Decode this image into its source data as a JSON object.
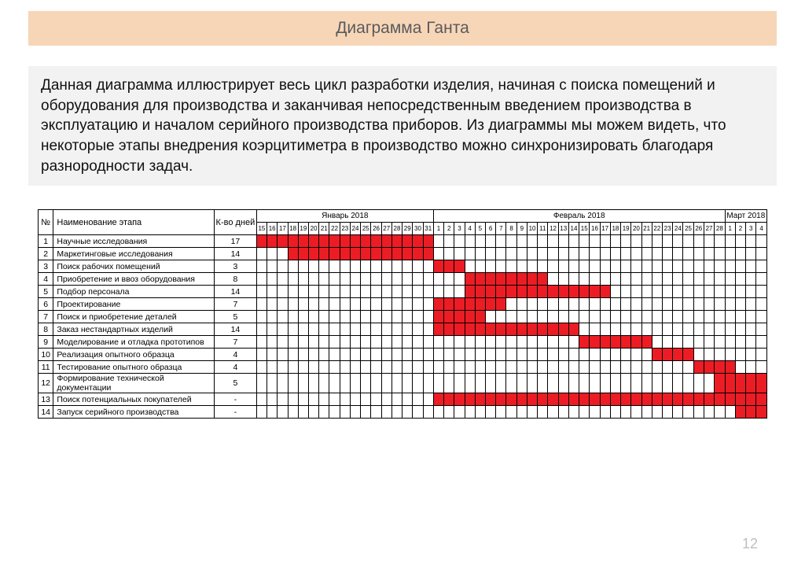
{
  "title": "Диаграмма Ганта",
  "description": "Данная диаграмма иллюстрирует весь цикл разработки изделия, начиная с поиска помещений и оборудования для производства и заканчивая непосредственным введением производства в эксплуатацию и началом серийного производства приборов. Из диаграммы мы можем видеть, что некоторые этапы внедрения коэрцитиметра в производство можно синхронизировать  благодаря разнородности задач.",
  "page_number": "12",
  "gantt": {
    "type": "gantt",
    "bar_color": "#ec1c24",
    "grid_color": "#000000",
    "background_color": "#ffffff",
    "title_band_color": "#f7d6b8",
    "desc_bg_color": "#f2f2f2",
    "title_fontsize_pt": 16,
    "desc_fontsize_pt": 14,
    "table_fontsize_pt": 8,
    "headers": {
      "num": "№",
      "name": "Наименование этапа",
      "days": "К-во дней"
    },
    "months": [
      {
        "label": "Январь 2018",
        "days": [
          15,
          16,
          17,
          18,
          19,
          20,
          21,
          22,
          23,
          24,
          25,
          26,
          27,
          28,
          29,
          30,
          31
        ]
      },
      {
        "label": "Февраль 2018",
        "days": [
          1,
          2,
          3,
          4,
          5,
          6,
          7,
          8,
          9,
          10,
          11,
          12,
          13,
          14,
          15,
          16,
          17,
          18,
          19,
          20,
          21,
          22,
          23,
          24,
          25,
          26,
          27,
          28
        ]
      },
      {
        "label": "Март 2018",
        "days": [
          1,
          2,
          3,
          4
        ]
      }
    ],
    "tasks": [
      {
        "num": 1,
        "name": "Научные исследования",
        "days": "17",
        "start": 0,
        "len": 17
      },
      {
        "num": 2,
        "name": "Маркетинговые исследования",
        "days": "14",
        "start": 3,
        "len": 14
      },
      {
        "num": 3,
        "name": "Поиск рабочих помещений",
        "days": "3",
        "start": 17,
        "len": 3
      },
      {
        "num": 4,
        "name": "Приобретение и ввоз оборудования",
        "days": "8",
        "start": 20,
        "len": 8
      },
      {
        "num": 5,
        "name": "Подбор персонала",
        "days": "14",
        "start": 20,
        "len": 14
      },
      {
        "num": 6,
        "name": "Проектирование",
        "days": "7",
        "start": 17,
        "len": 7
      },
      {
        "num": 7,
        "name": "Поиск и приобретение деталей",
        "days": "5",
        "start": 17,
        "len": 5
      },
      {
        "num": 8,
        "name": "Заказ нестандартных изделий",
        "days": "14",
        "start": 17,
        "len": 14
      },
      {
        "num": 9,
        "name": "Моделирование и отладка прототипов",
        "days": "7",
        "start": 31,
        "len": 7
      },
      {
        "num": 10,
        "name": "Реализация опытного образца",
        "days": "4",
        "start": 38,
        "len": 4
      },
      {
        "num": 11,
        "name": "Тестирование опытного образца",
        "days": "4",
        "start": 42,
        "len": 4
      },
      {
        "num": 12,
        "name": "Формирование технической документации",
        "days": "5",
        "start": 44,
        "len": 5
      },
      {
        "num": 13,
        "name": "Поиск потенциальных покупателей",
        "days": "-",
        "start": 17,
        "len": 32
      },
      {
        "num": 14,
        "name": "Запуск серийного производства",
        "days": "-",
        "start": 46,
        "len": 3
      }
    ]
  }
}
